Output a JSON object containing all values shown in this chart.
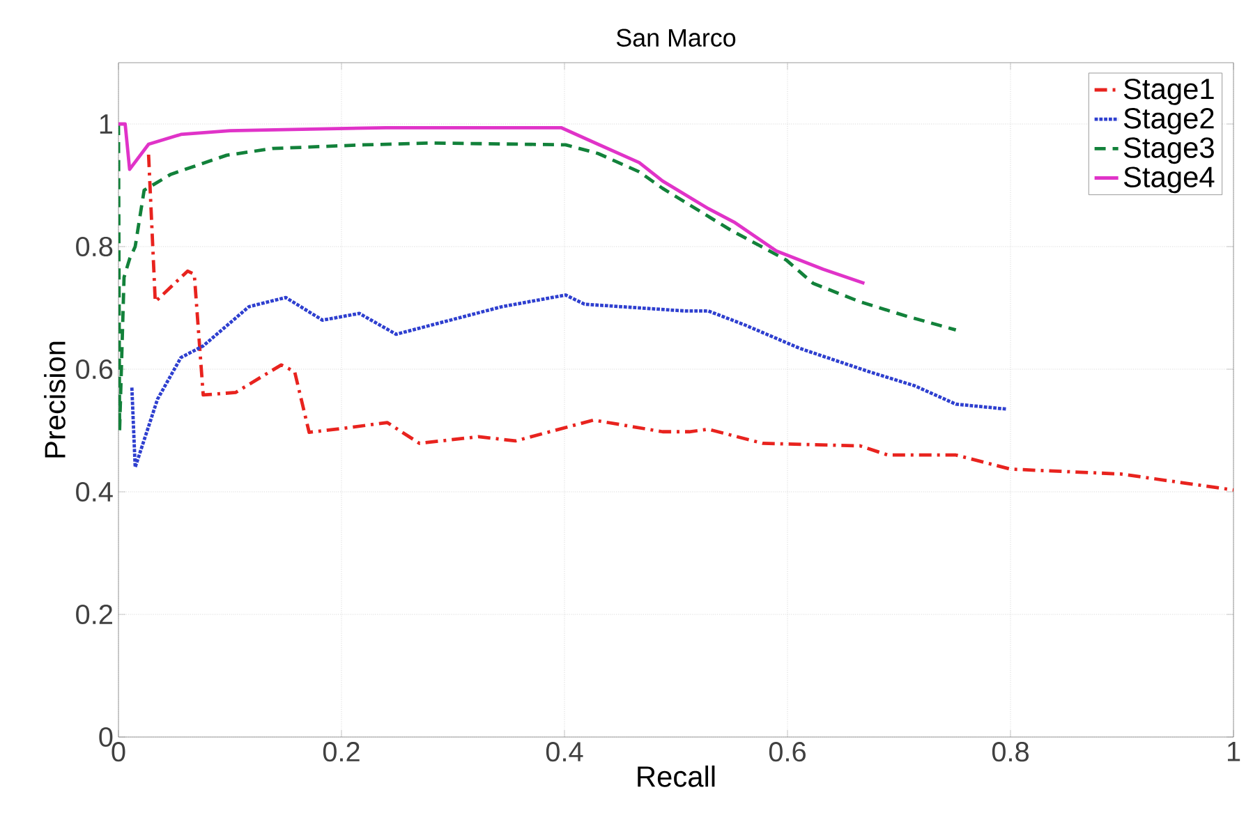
{
  "chart_data": {
    "type": "line",
    "title": "San Marco",
    "xlabel": "Recall",
    "ylabel": "Precision",
    "xlim": [
      0,
      1
    ],
    "ylim": [
      0,
      1.1
    ],
    "xticks": [
      0,
      0.2,
      0.4,
      0.6,
      0.8,
      1
    ],
    "yticks": [
      0,
      0.2,
      0.4,
      0.6,
      0.8,
      1
    ],
    "grid": true,
    "legend": "top right",
    "marker": "none",
    "series": [
      {
        "name": "Stage1",
        "color": "#e8231e",
        "line_style": "dashdot",
        "x": [
          0.027,
          0.033,
          0.062,
          0.068,
          0.076,
          0.105,
          0.146,
          0.158,
          0.171,
          0.208,
          0.241,
          0.27,
          0.323,
          0.356,
          0.426,
          0.488,
          0.512,
          0.529,
          0.578,
          0.665,
          0.69,
          0.751,
          0.8,
          0.899,
          1.0
        ],
        "values": [
          0.95,
          0.71,
          0.76,
          0.755,
          0.558,
          0.562,
          0.607,
          0.596,
          0.497,
          0.505,
          0.513,
          0.479,
          0.49,
          0.483,
          0.517,
          0.498,
          0.498,
          0.502,
          0.479,
          0.475,
          0.46,
          0.46,
          0.437,
          0.429,
          0.403
        ]
      },
      {
        "name": "Stage2",
        "color": "#2e3fcf",
        "line_style": "dotted",
        "x": [
          0.012,
          0.015,
          0.035,
          0.056,
          0.076,
          0.117,
          0.15,
          0.183,
          0.216,
          0.249,
          0.344,
          0.401,
          0.418,
          0.508,
          0.529,
          0.562,
          0.611,
          0.673,
          0.714,
          0.751,
          0.796
        ],
        "values": [
          0.57,
          0.44,
          0.551,
          0.619,
          0.638,
          0.702,
          0.717,
          0.68,
          0.691,
          0.657,
          0.702,
          0.721,
          0.706,
          0.695,
          0.695,
          0.672,
          0.634,
          0.596,
          0.573,
          0.543,
          0.535
        ]
      },
      {
        "name": "Stage3",
        "color": "#12813a",
        "line_style": "dashed",
        "x": [
          0,
          0.001,
          0.005,
          0.01,
          0.015,
          0.023,
          0.047,
          0.097,
          0.138,
          0.22,
          0.282,
          0.401,
          0.43,
          0.467,
          0.488,
          0.549,
          0.599,
          0.623,
          0.665,
          0.706,
          0.751
        ],
        "values": [
          1.0,
          0.5,
          0.75,
          0.78,
          0.8,
          0.892,
          0.918,
          0.949,
          0.96,
          0.966,
          0.969,
          0.966,
          0.952,
          0.922,
          0.895,
          0.827,
          0.778,
          0.74,
          0.71,
          0.687,
          0.664
        ]
      },
      {
        "name": "Stage4",
        "color": "#e033c8",
        "line_style": "solid",
        "x": [
          0,
          0.006,
          0.01,
          0.027,
          0.056,
          0.1,
          0.24,
          0.397,
          0.43,
          0.467,
          0.488,
          0.529,
          0.553,
          0.59,
          0.632,
          0.669
        ],
        "values": [
          1.0,
          1.0,
          0.926,
          0.967,
          0.983,
          0.989,
          0.994,
          0.994,
          0.967,
          0.937,
          0.907,
          0.862,
          0.839,
          0.793,
          0.763,
          0.74
        ]
      }
    ]
  }
}
